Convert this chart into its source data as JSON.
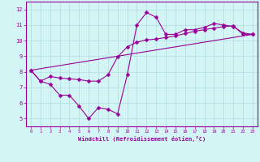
{
  "xlabel": "Windchill (Refroidissement éolien,°C)",
  "background_color": "#d4f5f5",
  "grid_color": "#b0dede",
  "line_color": "#990099",
  "xlim": [
    -0.5,
    23.5
  ],
  "ylim": [
    4.5,
    12.5
  ],
  "xticks": [
    0,
    1,
    2,
    3,
    4,
    5,
    6,
    7,
    8,
    9,
    10,
    11,
    12,
    13,
    14,
    15,
    16,
    17,
    18,
    19,
    20,
    21,
    22,
    23
  ],
  "yticks": [
    5,
    6,
    7,
    8,
    9,
    10,
    11,
    12
  ],
  "line1_x": [
    0,
    1,
    2,
    3,
    4,
    5,
    6,
    7,
    8,
    9,
    10,
    11,
    12,
    13,
    14,
    15,
    16,
    17,
    18,
    19,
    20,
    21,
    22,
    23
  ],
  "line1_y": [
    8.1,
    7.4,
    7.2,
    6.5,
    6.5,
    5.8,
    5.0,
    5.7,
    5.6,
    5.3,
    7.8,
    11.0,
    11.8,
    11.5,
    10.4,
    10.4,
    10.7,
    10.7,
    10.85,
    11.1,
    11.0,
    10.9,
    10.5,
    10.4
  ],
  "line2_x": [
    0,
    1,
    2,
    3,
    4,
    5,
    6,
    7,
    8,
    9,
    10,
    11,
    12,
    13,
    14,
    15,
    16,
    17,
    18,
    19,
    20,
    21,
    22,
    23
  ],
  "line2_y": [
    8.1,
    7.4,
    7.7,
    7.6,
    7.55,
    7.5,
    7.4,
    7.4,
    7.8,
    8.95,
    9.6,
    9.9,
    10.05,
    10.1,
    10.2,
    10.3,
    10.45,
    10.6,
    10.7,
    10.8,
    10.9,
    10.95,
    10.4,
    10.4
  ],
  "line3_x": [
    0,
    23
  ],
  "line3_y": [
    8.1,
    10.4
  ],
  "markersize": 2.5
}
